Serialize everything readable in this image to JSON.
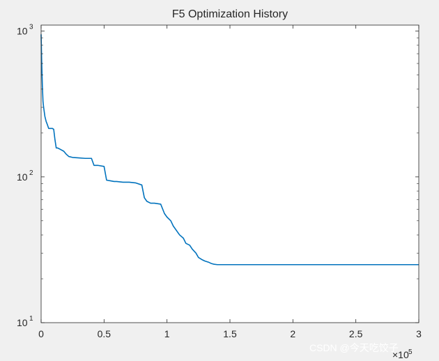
{
  "chart_data": {
    "type": "line",
    "title": "F5 Optimization History",
    "xlabel": "",
    "ylabel": "",
    "x_scale": "linear",
    "y_scale": "log",
    "xlim": [
      0,
      300000
    ],
    "ylim": [
      10,
      1100
    ],
    "x_tick_values": [
      0,
      50000,
      100000,
      150000,
      200000,
      250000,
      300000
    ],
    "x_tick_labels": [
      "0",
      "0.5",
      "1",
      "1.5",
      "2",
      "2.5",
      "3"
    ],
    "x_exponent_label": "×10",
    "x_exponent": "5",
    "y_tick_values": [
      10,
      100,
      1000
    ],
    "y_tick_labels": [
      "10",
      "10",
      "10"
    ],
    "y_tick_exponents": [
      "1",
      "2",
      "3"
    ],
    "grid": false,
    "box": true,
    "line_color": "#0072bd",
    "series": [
      {
        "x": [
          0,
          500,
          1000,
          1500,
          2000,
          3000,
          4000,
          5000,
          6000,
          7000,
          8000,
          9000,
          10000,
          11000,
          12000,
          13000,
          15000,
          18000,
          20000,
          22000,
          25000,
          30000,
          35000,
          40000,
          42000,
          45000,
          50000,
          52000,
          55000,
          58000,
          60000,
          65000,
          70000,
          75000,
          80000,
          82000,
          84000,
          87000,
          90000,
          95000,
          98000,
          100000,
          103000,
          105000,
          110000,
          113000,
          115000,
          118000,
          120000,
          123000,
          125000,
          128000,
          130000,
          133000,
          135000,
          137000,
          140000,
          200000,
          250000,
          300000
        ],
        "y": [
          950,
          600,
          420,
          330,
          300,
          260,
          240,
          228,
          215,
          215,
          215,
          215,
          212,
          180,
          158,
          158,
          155,
          150,
          143,
          138,
          136,
          135,
          134,
          134,
          120,
          120,
          118,
          95,
          94,
          93,
          93,
          92,
          92,
          91,
          88,
          72,
          68,
          66,
          66,
          65,
          56,
          53,
          50,
          46,
          40,
          38,
          35,
          34,
          32,
          30,
          28,
          27,
          26.5,
          26,
          25.5,
          25.2,
          25,
          25,
          25,
          25
        ]
      }
    ]
  },
  "watermark": "CSDN @今天吃饺子",
  "colors": {
    "background": "#f0f0f0",
    "axes_background": "#ffffff",
    "axes_color": "#262626",
    "line": "#0072bd"
  }
}
